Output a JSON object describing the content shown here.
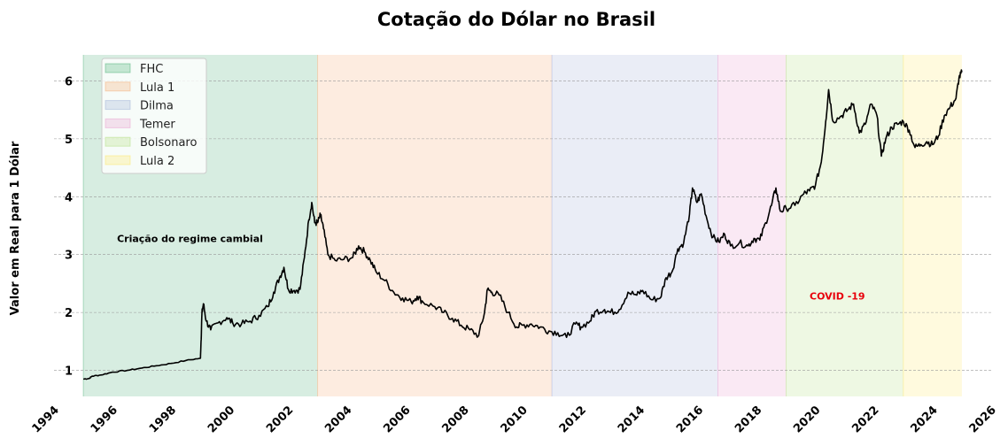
{
  "chart_data": {
    "type": "line",
    "title": "Cotação do Dólar no Brasil",
    "xlabel": "",
    "ylabel": "Valor em Real para 1 Dólar",
    "xlim": [
      1994,
      2026
    ],
    "ylim": [
      0.55,
      6.45
    ],
    "x_ticks": [
      "1994",
      "1996",
      "1998",
      "2000",
      "2002",
      "2004",
      "2006",
      "2008",
      "2010",
      "2012",
      "2014",
      "2016",
      "2018",
      "2020",
      "2022",
      "2024",
      "2026"
    ],
    "y_ticks": [
      "1",
      "2",
      "3",
      "4",
      "5",
      "6"
    ],
    "grid": "y-dashed",
    "legend_position": "top-left",
    "periods": [
      {
        "label": "FHC",
        "start": 1995.0,
        "end": 2003.0,
        "color": "#2ca25f"
      },
      {
        "label": "Lula 1",
        "start": 2003.0,
        "end": 2011.0,
        "color": "#f59a5b"
      },
      {
        "label": "Dilma",
        "start": 2011.0,
        "end": 2016.67,
        "color": "#8d9fd0"
      },
      {
        "label": "Temer",
        "start": 2016.67,
        "end": 2019.0,
        "color": "#e58bc6"
      },
      {
        "label": "Bolsonaro",
        "start": 2019.0,
        "end": 2023.0,
        "color": "#a6d96a"
      },
      {
        "label": "Lula 2",
        "start": 2023.0,
        "end": 2025.0,
        "color": "#fee34f"
      }
    ],
    "annotations": [
      {
        "text": "Criação do regime cambial",
        "x": 1996.15,
        "y": 3.22,
        "color": "#000000"
      },
      {
        "text": "COVID -19",
        "x": 2019.8,
        "y": 2.22,
        "color": "#e8000b"
      }
    ],
    "series": [
      {
        "color": "#000000",
        "points": [
          [
            1995.0,
            0.85
          ],
          [
            1995.2,
            0.86
          ],
          [
            1995.3,
            0.9
          ],
          [
            1995.6,
            0.92
          ],
          [
            1996.0,
            0.97
          ],
          [
            1996.5,
            1.0
          ],
          [
            1997.0,
            1.04
          ],
          [
            1997.5,
            1.08
          ],
          [
            1998.0,
            1.12
          ],
          [
            1998.5,
            1.17
          ],
          [
            1999.0,
            1.21
          ],
          [
            1999.02,
            1.5
          ],
          [
            1999.05,
            1.98
          ],
          [
            1999.1,
            2.15
          ],
          [
            1999.2,
            1.85
          ],
          [
            1999.35,
            1.7
          ],
          [
            1999.6,
            1.82
          ],
          [
            1999.9,
            1.91
          ],
          [
            2000.1,
            1.82
          ],
          [
            2000.4,
            1.8
          ],
          [
            2000.7,
            1.85
          ],
          [
            2001.0,
            1.95
          ],
          [
            2001.3,
            2.1
          ],
          [
            2001.5,
            2.35
          ],
          [
            2001.7,
            2.6
          ],
          [
            2001.85,
            2.78
          ],
          [
            2002.0,
            2.4
          ],
          [
            2002.2,
            2.38
          ],
          [
            2002.4,
            2.4
          ],
          [
            2002.55,
            2.95
          ],
          [
            2002.7,
            3.6
          ],
          [
            2002.8,
            3.9
          ],
          [
            2002.9,
            3.55
          ],
          [
            2003.0,
            3.55
          ],
          [
            2003.1,
            3.68
          ],
          [
            2003.2,
            3.45
          ],
          [
            2003.35,
            3.0
          ],
          [
            2003.6,
            2.9
          ],
          [
            2003.9,
            2.92
          ],
          [
            2004.2,
            2.95
          ],
          [
            2004.4,
            3.15
          ],
          [
            2004.6,
            3.05
          ],
          [
            2004.8,
            2.9
          ],
          [
            2005.0,
            2.7
          ],
          [
            2005.3,
            2.55
          ],
          [
            2005.6,
            2.35
          ],
          [
            2005.9,
            2.25
          ],
          [
            2006.2,
            2.18
          ],
          [
            2006.4,
            2.28
          ],
          [
            2006.6,
            2.18
          ],
          [
            2007.0,
            2.1
          ],
          [
            2007.3,
            2.0
          ],
          [
            2007.6,
            1.9
          ],
          [
            2007.9,
            1.78
          ],
          [
            2008.2,
            1.7
          ],
          [
            2008.5,
            1.6
          ],
          [
            2008.7,
            2.0
          ],
          [
            2008.8,
            2.4
          ],
          [
            2008.95,
            2.35
          ],
          [
            2009.2,
            2.3
          ],
          [
            2009.5,
            2.0
          ],
          [
            2009.8,
            1.75
          ],
          [
            2010.0,
            1.78
          ],
          [
            2010.3,
            1.8
          ],
          [
            2010.6,
            1.75
          ],
          [
            2010.9,
            1.68
          ],
          [
            2011.2,
            1.65
          ],
          [
            2011.5,
            1.57
          ],
          [
            2011.8,
            1.8
          ],
          [
            2012.0,
            1.75
          ],
          [
            2012.3,
            1.85
          ],
          [
            2012.5,
            2.02
          ],
          [
            2012.8,
            2.05
          ],
          [
            2013.0,
            2.0
          ],
          [
            2013.3,
            2.05
          ],
          [
            2013.6,
            2.35
          ],
          [
            2013.9,
            2.3
          ],
          [
            2014.1,
            2.38
          ],
          [
            2014.4,
            2.22
          ],
          [
            2014.7,
            2.25
          ],
          [
            2014.9,
            2.6
          ],
          [
            2015.1,
            2.7
          ],
          [
            2015.3,
            3.1
          ],
          [
            2015.5,
            3.2
          ],
          [
            2015.7,
            3.7
          ],
          [
            2015.8,
            4.15
          ],
          [
            2015.95,
            3.9
          ],
          [
            2016.1,
            4.05
          ],
          [
            2016.3,
            3.6
          ],
          [
            2016.5,
            3.3
          ],
          [
            2016.7,
            3.22
          ],
          [
            2016.9,
            3.35
          ],
          [
            2017.1,
            3.15
          ],
          [
            2017.4,
            3.2
          ],
          [
            2017.7,
            3.15
          ],
          [
            2017.9,
            3.28
          ],
          [
            2018.1,
            3.25
          ],
          [
            2018.3,
            3.55
          ],
          [
            2018.5,
            3.85
          ],
          [
            2018.65,
            4.15
          ],
          [
            2018.8,
            3.75
          ],
          [
            2019.0,
            3.8
          ],
          [
            2019.3,
            3.85
          ],
          [
            2019.6,
            4.05
          ],
          [
            2019.8,
            4.1
          ],
          [
            2020.0,
            4.2
          ],
          [
            2020.2,
            4.6
          ],
          [
            2020.35,
            5.3
          ],
          [
            2020.45,
            5.85
          ],
          [
            2020.6,
            5.3
          ],
          [
            2020.9,
            5.4
          ],
          [
            2021.1,
            5.5
          ],
          [
            2021.3,
            5.6
          ],
          [
            2021.5,
            5.1
          ],
          [
            2021.7,
            5.25
          ],
          [
            2021.9,
            5.6
          ],
          [
            2022.1,
            5.4
          ],
          [
            2022.25,
            4.7
          ],
          [
            2022.4,
            5.0
          ],
          [
            2022.6,
            5.2
          ],
          [
            2022.8,
            5.25
          ],
          [
            2023.0,
            5.3
          ],
          [
            2023.2,
            5.15
          ],
          [
            2023.4,
            4.85
          ],
          [
            2023.6,
            4.9
          ],
          [
            2023.8,
            4.95
          ],
          [
            2024.0,
            4.9
          ],
          [
            2024.2,
            5.05
          ],
          [
            2024.4,
            5.4
          ],
          [
            2024.6,
            5.55
          ],
          [
            2024.8,
            5.7
          ],
          [
            2024.9,
            6.05
          ],
          [
            2025.0,
            6.15
          ]
        ]
      }
    ]
  }
}
